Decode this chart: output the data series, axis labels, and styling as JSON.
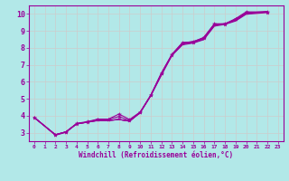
{
  "bg_color": "#b2e8e8",
  "grid_color": "#cccccc",
  "line_color": "#990099",
  "xlabel": "Windchill (Refroidissement éolien,°C)",
  "xlim": [
    -0.5,
    23.5
  ],
  "ylim": [
    2.5,
    10.5
  ],
  "xticks": [
    0,
    1,
    2,
    3,
    4,
    5,
    6,
    7,
    8,
    9,
    10,
    11,
    12,
    13,
    14,
    15,
    16,
    17,
    18,
    19,
    20,
    21,
    22,
    23
  ],
  "yticks": [
    3,
    4,
    5,
    6,
    7,
    8,
    9,
    10
  ],
  "x_data": [
    0,
    2,
    3,
    4,
    5,
    6,
    7,
    8,
    9,
    10,
    11,
    12,
    13,
    14,
    15,
    16,
    17,
    18,
    19,
    20,
    22
  ],
  "smooth_line1": [
    3.9,
    2.88,
    3.05,
    3.52,
    3.62,
    3.72,
    3.72,
    3.78,
    3.68,
    4.18,
    5.18,
    6.38,
    7.55,
    8.18,
    8.28,
    8.48,
    9.28,
    9.38,
    9.58,
    9.98,
    10.08
  ],
  "smooth_line2": [
    3.9,
    2.88,
    3.05,
    3.52,
    3.62,
    3.72,
    3.72,
    3.78,
    3.68,
    4.18,
    5.18,
    6.42,
    7.58,
    8.22,
    8.32,
    8.52,
    9.32,
    9.42,
    9.62,
    10.02,
    10.12
  ],
  "smooth_line3": [
    3.9,
    2.88,
    3.05,
    3.52,
    3.62,
    3.72,
    3.72,
    3.78,
    3.68,
    4.18,
    5.18,
    6.48,
    7.62,
    8.28,
    8.38,
    8.58,
    9.38,
    9.42,
    9.65,
    10.05,
    10.15
  ],
  "marker_line1": [
    3.9,
    2.88,
    3.05,
    3.55,
    3.65,
    3.8,
    3.8,
    4.1,
    3.78,
    4.22,
    5.22,
    6.52,
    7.62,
    8.32,
    8.35,
    8.62,
    9.42,
    9.42,
    9.72,
    10.12,
    10.12
  ],
  "marker_line2": [
    3.9,
    2.85,
    3.02,
    3.52,
    3.62,
    3.78,
    3.78,
    3.95,
    3.72,
    4.2,
    5.2,
    6.48,
    7.58,
    8.28,
    8.32,
    8.58,
    9.38,
    9.4,
    9.68,
    10.08,
    10.1
  ]
}
